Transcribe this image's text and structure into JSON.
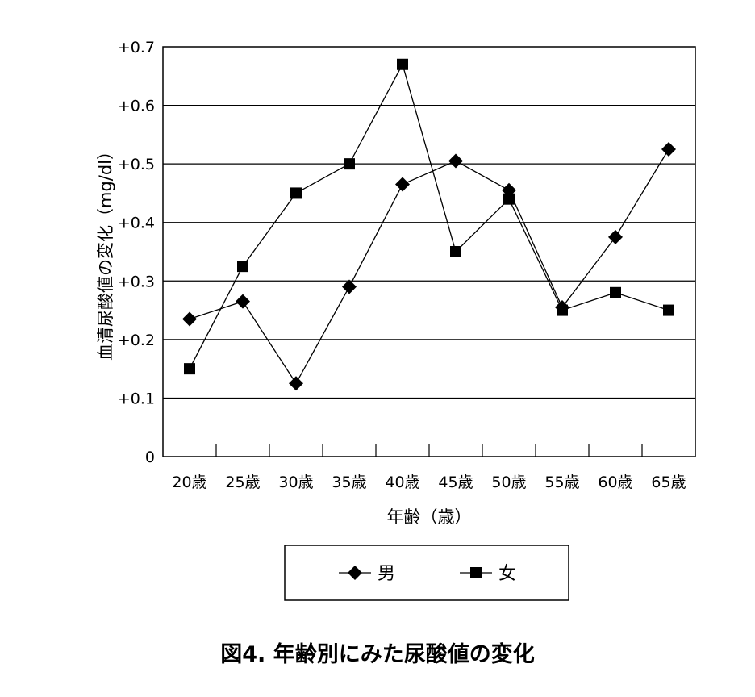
{
  "chart_data": {
    "type": "line",
    "caption": "図4. 年齢別にみた尿酸値の変化",
    "xlabel": "年齢（歳）",
    "ylabel": "血清尿酸値の変化（mg/dl）",
    "categories": [
      "20歳",
      "25歳",
      "30歳",
      "35歳",
      "40歳",
      "45歳",
      "50歳",
      "55歳",
      "60歳",
      "65歳"
    ],
    "ylim": [
      0,
      0.7
    ],
    "yticks": [
      0,
      0.1,
      0.2,
      0.3,
      0.4,
      0.5,
      0.6,
      0.7
    ],
    "ytick_labels": [
      "0",
      "+0.1",
      "+0.2",
      "+0.3",
      "+0.4",
      "+0.5",
      "+0.6",
      "+0.7"
    ],
    "grid": "horizontal",
    "legend_position": "bottom",
    "series": [
      {
        "name": "男",
        "marker": "diamond",
        "values": [
          0.235,
          0.265,
          0.125,
          0.29,
          0.465,
          0.505,
          0.455,
          0.255,
          0.375,
          0.525
        ]
      },
      {
        "name": "女",
        "marker": "square",
        "values": [
          0.15,
          0.325,
          0.45,
          0.5,
          0.67,
          0.35,
          0.44,
          0.25,
          0.28,
          0.25
        ]
      }
    ],
    "colors": {
      "line": "#000000",
      "grid": "#000000",
      "background": "#ffffff"
    }
  }
}
